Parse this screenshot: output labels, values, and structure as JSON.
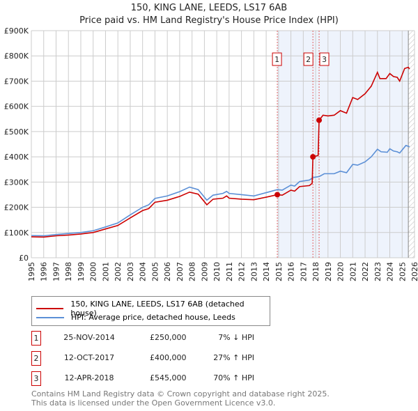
{
  "chart_data": {
    "type": "line",
    "title": "150, KING LANE, LEEDS, LS17 6AB",
    "subtitle": "Price paid vs. HM Land Registry's House Price Index (HPI)",
    "xlim": [
      1995,
      2026
    ],
    "ylim": [
      0,
      900000
    ],
    "y_ticks": [
      {
        "v": 0,
        "label": "£0"
      },
      {
        "v": 100000,
        "label": "£100K"
      },
      {
        "v": 200000,
        "label": "£200K"
      },
      {
        "v": 300000,
        "label": "£300K"
      },
      {
        "v": 400000,
        "label": "£400K"
      },
      {
        "v": 500000,
        "label": "£500K"
      },
      {
        "v": 600000,
        "label": "£600K"
      },
      {
        "v": 700000,
        "label": "£700K"
      },
      {
        "v": 800000,
        "label": "£800K"
      },
      {
        "v": 900000,
        "label": "£900K"
      }
    ],
    "x_ticks": [
      "1995",
      "1996",
      "1997",
      "1998",
      "1999",
      "2000",
      "2001",
      "2002",
      "2003",
      "2004",
      "2005",
      "2006",
      "2007",
      "2008",
      "2009",
      "2010",
      "2011",
      "2012",
      "2013",
      "2014",
      "2015",
      "2016",
      "2017",
      "2018",
      "2019",
      "2020",
      "2021",
      "2022",
      "2023",
      "2024",
      "2025",
      "2026"
    ],
    "grid": true,
    "shaded_from": 2014.9,
    "data_end": 2025.5,
    "series": [
      {
        "name": "150, KING LANE, LEEDS, LS17 6AB (detached house)",
        "color": "#cc0000",
        "points": [
          [
            1995,
            83000
          ],
          [
            1996,
            82000
          ],
          [
            1997,
            87000
          ],
          [
            1998,
            90000
          ],
          [
            1999,
            94000
          ],
          [
            2000,
            100000
          ],
          [
            2001,
            114000
          ],
          [
            2002,
            128000
          ],
          [
            2003,
            158000
          ],
          [
            2004,
            187000
          ],
          [
            2004.5,
            195000
          ],
          [
            2005,
            220000
          ],
          [
            2006,
            228000
          ],
          [
            2007,
            243000
          ],
          [
            2007.8,
            260000
          ],
          [
            2008.5,
            252000
          ],
          [
            2009.2,
            210000
          ],
          [
            2009.7,
            232000
          ],
          [
            2010.5,
            236000
          ],
          [
            2010.8,
            245000
          ],
          [
            2011,
            236000
          ],
          [
            2012,
            232000
          ],
          [
            2013,
            230000
          ],
          [
            2014,
            240000
          ],
          [
            2014.9,
            250000
          ],
          [
            2015.3,
            248000
          ],
          [
            2016,
            268000
          ],
          [
            2016.3,
            264000
          ],
          [
            2016.7,
            282000
          ],
          [
            2017.5,
            286000
          ],
          [
            2017.72,
            295000
          ],
          [
            2017.78,
            400000
          ],
          [
            2018.2,
            405000
          ],
          [
            2018.28,
            545000
          ],
          [
            2018.6,
            565000
          ],
          [
            2019,
            562000
          ],
          [
            2019.5,
            565000
          ],
          [
            2020,
            583000
          ],
          [
            2020.5,
            573000
          ],
          [
            2021,
            635000
          ],
          [
            2021.4,
            627000
          ],
          [
            2022,
            650000
          ],
          [
            2022.5,
            680000
          ],
          [
            2023,
            735000
          ],
          [
            2023.2,
            710000
          ],
          [
            2023.7,
            710000
          ],
          [
            2024,
            730000
          ],
          [
            2024.3,
            718000
          ],
          [
            2024.6,
            715000
          ],
          [
            2024.8,
            700000
          ],
          [
            2025.2,
            750000
          ],
          [
            2025.5,
            755000
          ],
          [
            2025.6,
            748000
          ]
        ]
      },
      {
        "name": "HPI: Average price, detached house, Leeds",
        "color": "#5b8fd6",
        "points": [
          [
            1995,
            88000
          ],
          [
            1996,
            87000
          ],
          [
            1997,
            92000
          ],
          [
            1998,
            96000
          ],
          [
            1999,
            100000
          ],
          [
            2000,
            107000
          ],
          [
            2001,
            122000
          ],
          [
            2002,
            138000
          ],
          [
            2003,
            170000
          ],
          [
            2004,
            200000
          ],
          [
            2004.5,
            210000
          ],
          [
            2005,
            235000
          ],
          [
            2006,
            245000
          ],
          [
            2007,
            262000
          ],
          [
            2007.8,
            280000
          ],
          [
            2008.5,
            270000
          ],
          [
            2009.2,
            228000
          ],
          [
            2009.7,
            248000
          ],
          [
            2010.5,
            255000
          ],
          [
            2010.8,
            263000
          ],
          [
            2011,
            255000
          ],
          [
            2012,
            250000
          ],
          [
            2013,
            245000
          ],
          [
            2014,
            258000
          ],
          [
            2014.9,
            270000
          ],
          [
            2015.3,
            268000
          ],
          [
            2016,
            288000
          ],
          [
            2016.3,
            284000
          ],
          [
            2016.7,
            302000
          ],
          [
            2017.5,
            308000
          ],
          [
            2017.8,
            318000
          ],
          [
            2018.3,
            322000
          ],
          [
            2018.7,
            333000
          ],
          [
            2019.5,
            333000
          ],
          [
            2020,
            343000
          ],
          [
            2020.5,
            337000
          ],
          [
            2021,
            370000
          ],
          [
            2021.4,
            367000
          ],
          [
            2022,
            380000
          ],
          [
            2022.5,
            400000
          ],
          [
            2023,
            430000
          ],
          [
            2023.3,
            420000
          ],
          [
            2023.8,
            418000
          ],
          [
            2024,
            432000
          ],
          [
            2024.3,
            423000
          ],
          [
            2024.6,
            420000
          ],
          [
            2024.8,
            415000
          ],
          [
            2025.3,
            445000
          ],
          [
            2025.6,
            440000
          ]
        ]
      }
    ],
    "sales": [
      {
        "num": "1",
        "x": 2014.9,
        "value": 250000,
        "date": "25-NOV-2014",
        "price": "£250,000",
        "hpi": "7% ↓ HPI"
      },
      {
        "num": "2",
        "x": 2017.78,
        "value": 400000,
        "date": "12-OCT-2017",
        "price": "£400,000",
        "hpi": "27% ↑ HPI"
      },
      {
        "num": "3",
        "x": 2018.28,
        "value": 545000,
        "date": "12-APR-2018",
        "price": "£545,000",
        "hpi": "70% ↑ HPI"
      }
    ]
  },
  "footer": {
    "line1": "Contains HM Land Registry data © Crown copyright and database right 2025.",
    "line2": "This data is licensed under the Open Government Licence v3.0."
  }
}
